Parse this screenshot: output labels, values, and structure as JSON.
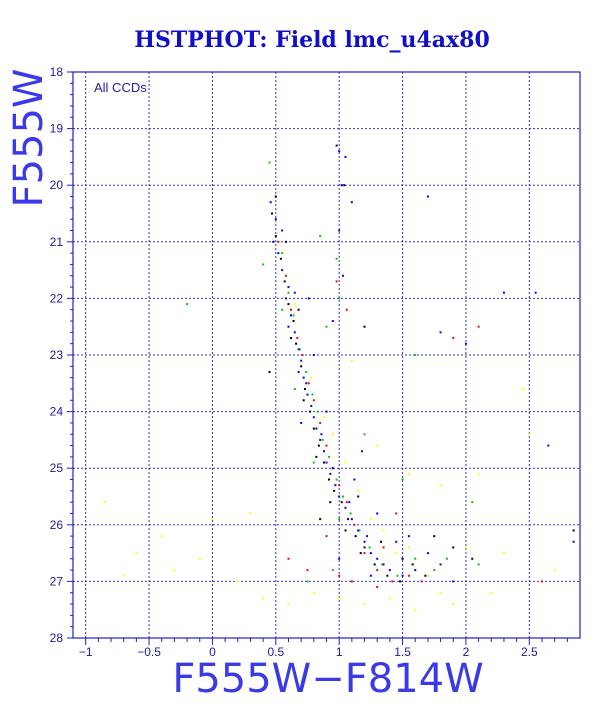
{
  "chart_data": {
    "type": "scatter",
    "title": "HSTPHOT: Field lmc_u4ax80",
    "xlabel": "F555W−F814W",
    "ylabel": "F555W",
    "annotation": "All CCDs",
    "xlim": [
      -1.1,
      2.9
    ],
    "ylim": [
      28,
      18
    ],
    "y_inverted": true,
    "grid": true,
    "x_ticks": [
      -1,
      -0.5,
      0,
      0.5,
      1,
      1.5,
      2,
      2.5
    ],
    "x_tick_labels": [
      "−1",
      "−0.5",
      "0",
      "0.5",
      "1",
      "1.5",
      "2",
      "2.5"
    ],
    "y_ticks": [
      18,
      19,
      20,
      21,
      22,
      23,
      24,
      25,
      26,
      27,
      28
    ],
    "y_tick_labels": [
      "18",
      "19",
      "20",
      "21",
      "22",
      "23",
      "24",
      "25",
      "26",
      "27",
      "28"
    ],
    "colors": {
      "title": "#1010c8",
      "frame": "#2020c0",
      "grid": "#3030d0",
      "series": [
        "#0000ff",
        "#000000",
        "#ff0000",
        "#00cc00",
        "#ffff00"
      ]
    },
    "series": [
      {
        "color": "#0000ff",
        "points": [
          [
            0.46,
            20.3
          ],
          [
            0.5,
            20.6
          ],
          [
            0.48,
            21.0
          ],
          [
            0.52,
            21.2
          ],
          [
            0.55,
            21.5
          ],
          [
            0.6,
            21.8
          ],
          [
            0.58,
            22.0
          ],
          [
            0.62,
            22.3
          ],
          [
            0.65,
            22.6
          ],
          [
            0.68,
            22.9
          ],
          [
            0.7,
            23.1
          ],
          [
            0.72,
            23.4
          ],
          [
            0.75,
            23.7
          ],
          [
            0.78,
            23.9
          ],
          [
            0.8,
            24.1
          ],
          [
            0.82,
            24.3
          ],
          [
            0.85,
            24.5
          ],
          [
            0.88,
            24.7
          ],
          [
            0.9,
            24.9
          ],
          [
            0.93,
            25.1
          ],
          [
            0.97,
            25.3
          ],
          [
            1.0,
            25.5
          ],
          [
            1.05,
            25.7
          ],
          [
            1.1,
            25.9
          ],
          [
            1.15,
            26.1
          ],
          [
            1.2,
            26.3
          ],
          [
            1.25,
            26.5
          ],
          [
            1.3,
            26.6
          ],
          [
            1.4,
            26.8
          ],
          [
            1.5,
            26.9
          ],
          [
            0.6,
            22.5
          ],
          [
            0.74,
            23.5
          ],
          [
            0.86,
            24.4
          ],
          [
            0.95,
            25.0
          ],
          [
            1.08,
            25.6
          ],
          [
            1.22,
            26.2
          ],
          [
            1.35,
            26.7
          ],
          [
            1.6,
            26.8
          ],
          [
            1.0,
            19.4
          ],
          [
            1.05,
            19.5
          ],
          [
            1.02,
            20.0
          ],
          [
            1.1,
            20.3
          ],
          [
            1.0,
            20.8
          ],
          [
            1.03,
            21.6
          ],
          [
            0.95,
            22.4
          ],
          [
            1.7,
            26.5
          ],
          [
            1.8,
            26.7
          ],
          [
            1.9,
            27.0
          ],
          [
            0.55,
            20.8
          ],
          [
            0.65,
            21.9
          ],
          [
            0.8,
            23.0
          ],
          [
            0.9,
            24.0
          ],
          [
            1.12,
            25.2
          ],
          [
            1.3,
            25.8
          ],
          [
            1.45,
            26.3
          ],
          [
            1.55,
            26.2
          ],
          [
            2.3,
            21.9
          ],
          [
            2.55,
            21.9
          ],
          [
            2.65,
            24.6
          ],
          [
            2.85,
            26.3
          ],
          [
            1.7,
            20.2
          ],
          [
            2.0,
            22.8
          ],
          [
            1.8,
            22.6
          ],
          [
            0.7,
            24.2
          ],
          [
            0.76,
            22.0
          ],
          [
            0.68,
            23.3
          ],
          [
            1.18,
            24.7
          ],
          [
            1.25,
            26.9
          ],
          [
            1.0,
            26.6
          ]
        ]
      },
      {
        "color": "#000000",
        "points": [
          [
            0.47,
            20.5
          ],
          [
            0.5,
            20.9
          ],
          [
            0.54,
            21.3
          ],
          [
            0.57,
            21.7
          ],
          [
            0.6,
            22.1
          ],
          [
            0.64,
            22.4
          ],
          [
            0.66,
            22.8
          ],
          [
            0.7,
            23.2
          ],
          [
            0.73,
            23.6
          ],
          [
            0.77,
            24.0
          ],
          [
            0.8,
            24.3
          ],
          [
            0.84,
            24.6
          ],
          [
            0.88,
            24.9
          ],
          [
            0.92,
            25.2
          ],
          [
            0.96,
            25.4
          ],
          [
            1.02,
            25.6
          ],
          [
            1.07,
            25.9
          ],
          [
            1.13,
            26.2
          ],
          [
            1.2,
            26.4
          ],
          [
            1.28,
            26.7
          ],
          [
            1.38,
            26.9
          ],
          [
            1.48,
            27.0
          ],
          [
            1.58,
            26.7
          ],
          [
            1.68,
            26.9
          ],
          [
            0.5,
            20.2
          ],
          [
            0.62,
            22.7
          ],
          [
            0.72,
            23.8
          ],
          [
            0.82,
            24.8
          ],
          [
            0.93,
            25.6
          ],
          [
            1.05,
            26.1
          ],
          [
            1.17,
            26.5
          ],
          [
            1.33,
            26.3
          ],
          [
            0.98,
            19.3
          ],
          [
            1.04,
            20.0
          ],
          [
            1.2,
            22.5
          ],
          [
            1.5,
            26.6
          ],
          [
            1.75,
            26.2
          ],
          [
            1.9,
            26.4
          ],
          [
            2.05,
            26.6
          ],
          [
            2.85,
            26.1
          ],
          [
            0.45,
            23.3
          ],
          [
            0.85,
            25.9
          ],
          [
            1.15,
            25.5
          ],
          [
            0.58,
            21.0
          ],
          [
            0.68,
            22.2
          ]
        ]
      },
      {
        "color": "#ff0000",
        "points": [
          [
            0.52,
            21.0
          ],
          [
            0.58,
            21.6
          ],
          [
            0.62,
            22.2
          ],
          [
            0.67,
            22.7
          ],
          [
            0.71,
            23.0
          ],
          [
            0.76,
            23.5
          ],
          [
            0.8,
            23.8
          ],
          [
            0.85,
            24.2
          ],
          [
            0.9,
            24.6
          ],
          [
            0.95,
            25.0
          ],
          [
            1.0,
            25.3
          ],
          [
            1.06,
            25.6
          ],
          [
            1.12,
            26.0
          ],
          [
            1.2,
            26.5
          ],
          [
            1.3,
            26.8
          ],
          [
            1.42,
            27.0
          ],
          [
            1.55,
            26.9
          ],
          [
            1.65,
            27.0
          ],
          [
            0.6,
            26.6
          ],
          [
            0.75,
            26.8
          ],
          [
            0.9,
            26.2
          ],
          [
            1.0,
            26.9
          ],
          [
            1.1,
            27.0
          ],
          [
            1.3,
            27.1
          ],
          [
            1.02,
            20.0
          ],
          [
            0.98,
            21.7
          ],
          [
            1.06,
            22.2
          ],
          [
            1.9,
            22.7
          ],
          [
            2.1,
            22.5
          ],
          [
            2.6,
            27.0
          ],
          [
            1.45,
            25.8
          ],
          [
            1.35,
            26.4
          ]
        ]
      },
      {
        "color": "#00cc00",
        "points": [
          [
            0.55,
            21.2
          ],
          [
            0.6,
            21.9
          ],
          [
            0.64,
            22.3
          ],
          [
            0.69,
            22.9
          ],
          [
            0.74,
            23.3
          ],
          [
            0.79,
            23.7
          ],
          [
            0.83,
            24.0
          ],
          [
            0.87,
            24.5
          ],
          [
            0.92,
            24.8
          ],
          [
            0.98,
            25.2
          ],
          [
            1.03,
            25.5
          ],
          [
            1.09,
            25.8
          ],
          [
            1.16,
            26.1
          ],
          [
            1.24,
            26.4
          ],
          [
            1.34,
            26.7
          ],
          [
            1.46,
            26.9
          ],
          [
            1.6,
            26.6
          ],
          [
            1.75,
            26.8
          ],
          [
            1.85,
            26.6
          ],
          [
            0.4,
            21.4
          ],
          [
            0.55,
            22.2
          ],
          [
            0.65,
            23.6
          ],
          [
            0.8,
            24.9
          ],
          [
            1.0,
            25.9
          ],
          [
            0.85,
            20.9
          ],
          [
            0.9,
            22.5
          ],
          [
            1.0,
            22.0
          ],
          [
            0.98,
            21.3
          ],
          [
            2.05,
            25.6
          ],
          [
            0.45,
            19.6
          ],
          [
            -0.2,
            22.1
          ],
          [
            2.1,
            26.7
          ],
          [
            1.6,
            23.0
          ],
          [
            1.2,
            24.4
          ],
          [
            0.95,
            26.8
          ],
          [
            0.75,
            27.0
          ],
          [
            1.5,
            25.2
          ]
        ]
      },
      {
        "color": "#ffff00",
        "points": [
          [
            0.65,
            22.1
          ],
          [
            0.78,
            23.4
          ],
          [
            0.88,
            24.1
          ],
          [
            0.95,
            24.4
          ],
          [
            1.05,
            24.9
          ],
          [
            1.15,
            25.4
          ],
          [
            1.25,
            25.9
          ],
          [
            1.35,
            26.1
          ],
          [
            1.45,
            26.5
          ],
          [
            1.55,
            26.4
          ],
          [
            1.7,
            26.9
          ],
          [
            1.8,
            27.2
          ],
          [
            2.0,
            26.4
          ],
          [
            2.3,
            26.5
          ],
          [
            2.5,
            24.4
          ],
          [
            2.45,
            23.6
          ],
          [
            -0.6,
            26.5
          ],
          [
            -0.7,
            26.9
          ],
          [
            -0.85,
            25.6
          ],
          [
            -0.3,
            26.8
          ],
          [
            -0.1,
            26.6
          ],
          [
            0.2,
            27.0
          ],
          [
            0.4,
            27.3
          ],
          [
            0.6,
            27.4
          ],
          [
            0.8,
            27.2
          ],
          [
            1.0,
            27.3
          ],
          [
            1.2,
            27.4
          ],
          [
            1.4,
            27.3
          ],
          [
            1.6,
            27.5
          ],
          [
            1.9,
            27.4
          ],
          [
            2.2,
            27.2
          ],
          [
            2.7,
            26.8
          ],
          [
            1.1,
            23.1
          ],
          [
            1.3,
            24.6
          ],
          [
            1.55,
            25.1
          ],
          [
            1.8,
            25.3
          ],
          [
            0.3,
            25.8
          ],
          [
            0.0,
            25.9
          ],
          [
            -0.4,
            26.2
          ],
          [
            2.1,
            25.1
          ]
        ]
      }
    ]
  }
}
